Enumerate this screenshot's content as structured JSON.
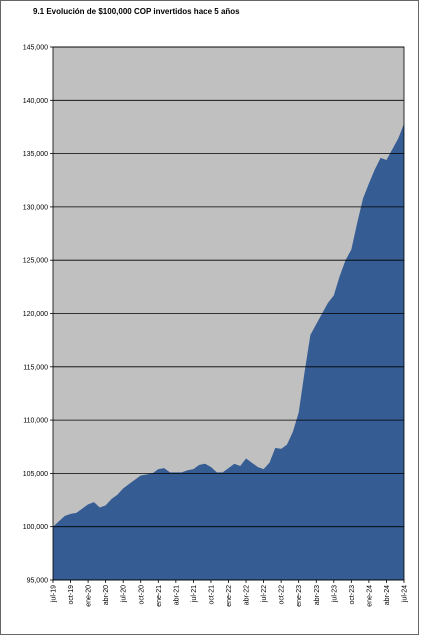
{
  "chart_data": {
    "type": "area",
    "title": "9.1 Evolución de $100,000 COP invertidos hace 5 años",
    "categories": [
      "jul-19",
      null,
      null,
      "oct-19",
      null,
      null,
      "ene-20",
      null,
      null,
      "abr-20",
      null,
      null,
      "jul-20",
      null,
      null,
      "oct-20",
      null,
      null,
      "ene-21",
      null,
      null,
      "abr-21",
      null,
      null,
      "jul-21",
      null,
      null,
      "oct-21",
      null,
      null,
      "ene-22",
      null,
      null,
      "abr-22",
      null,
      null,
      "jul-22",
      null,
      null,
      "oct-22",
      null,
      null,
      "ene-23",
      null,
      null,
      "abr-23",
      null,
      null,
      "jul-23",
      null,
      null,
      "oct-23",
      null,
      null,
      "ene-24",
      null,
      null,
      "abr-24",
      null,
      null,
      "jul-24"
    ],
    "values": [
      100000,
      100500,
      101000,
      101200,
      101300,
      101700,
      102100,
      102300,
      101800,
      102000,
      102600,
      103000,
      103600,
      104000,
      104400,
      104800,
      104900,
      105000,
      105400,
      105500,
      105100,
      105100,
      105100,
      105300,
      105400,
      105800,
      105900,
      105600,
      105100,
      105100,
      105500,
      105900,
      105700,
      106400,
      106000,
      105600,
      105400,
      106000,
      107400,
      107300,
      107700,
      108900,
      110700,
      114500,
      118000,
      119000,
      120000,
      121000,
      121700,
      123500,
      125000,
      126000,
      128500,
      130800,
      132200,
      133500,
      134600,
      134400,
      135400,
      136400,
      137800
    ],
    "color": "#355c93",
    "plot_background": "#c0c0c0",
    "ylim": [
      95000,
      145000
    ],
    "yticks": [
      {
        "value": 95000,
        "label": "95,000"
      },
      {
        "value": 100000,
        "label": "100,000"
      },
      {
        "value": 105000,
        "label": "105,000"
      },
      {
        "value": 110000,
        "label": "110,000"
      },
      {
        "value": 115000,
        "label": "115,000"
      },
      {
        "value": 120000,
        "label": "120,000"
      },
      {
        "value": 125000,
        "label": "125,000"
      },
      {
        "value": 130000,
        "label": "130,000"
      },
      {
        "value": 135000,
        "label": "135,000"
      },
      {
        "value": 140000,
        "label": "140,000"
      },
      {
        "value": 145000,
        "label": "145,000"
      }
    ],
    "grid": true
  }
}
